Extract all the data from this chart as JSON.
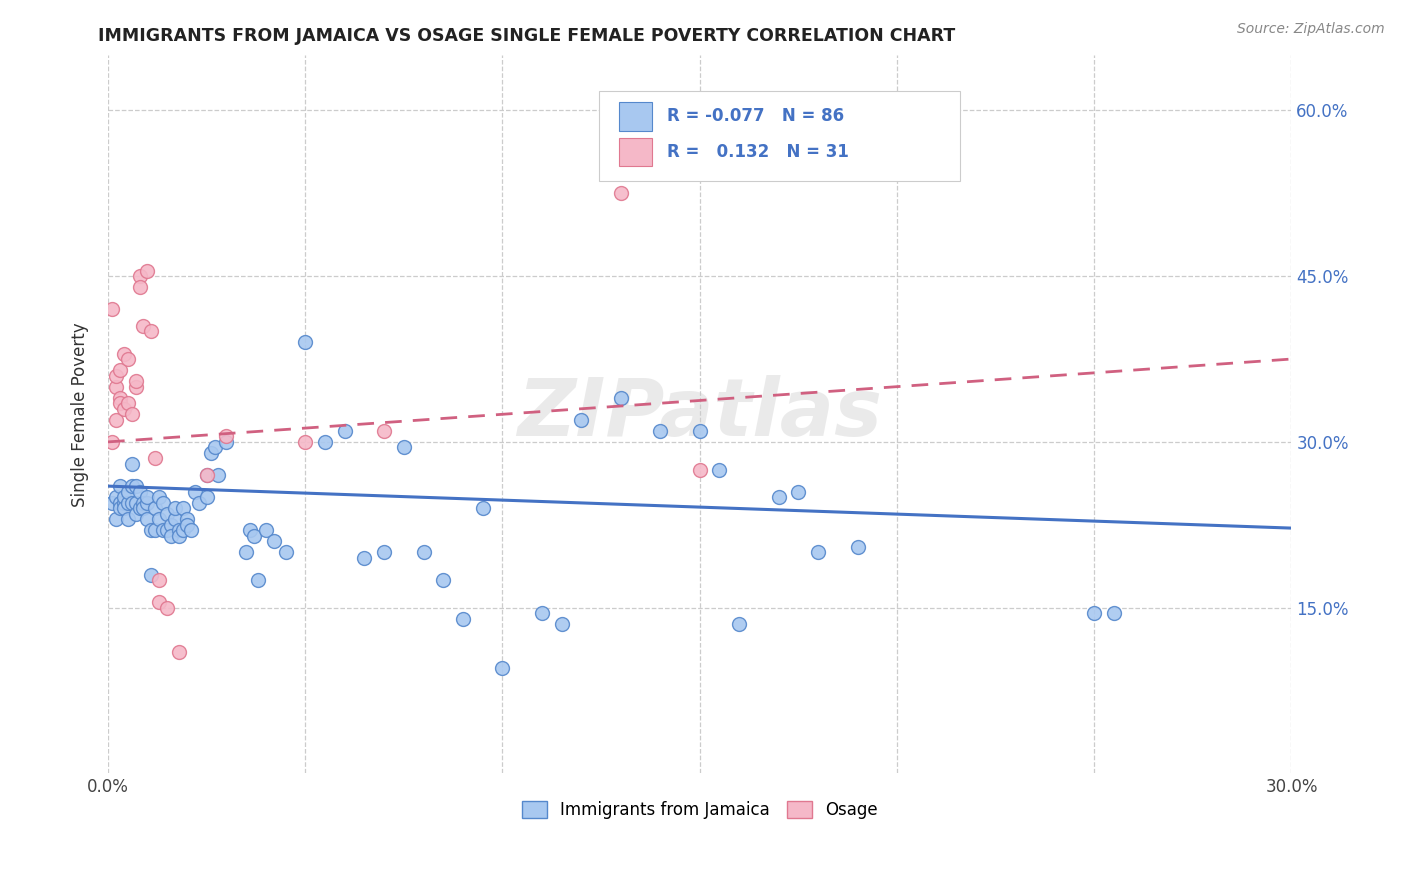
{
  "title": "IMMIGRANTS FROM JAMAICA VS OSAGE SINGLE FEMALE POVERTY CORRELATION CHART",
  "source": "Source: ZipAtlas.com",
  "ylabel": "Single Female Poverty",
  "xlim": [
    0.0,
    0.3
  ],
  "ylim": [
    0.0,
    0.65
  ],
  "xtick_vals": [
    0.0,
    0.05,
    0.1,
    0.15,
    0.2,
    0.25,
    0.3
  ],
  "xticklabels": [
    "0.0%",
    "",
    "",
    "",
    "",
    "",
    "30.0%"
  ],
  "ytick_vals": [
    0.15,
    0.3,
    0.45,
    0.6
  ],
  "ytick_labels": [
    "15.0%",
    "30.0%",
    "45.0%",
    "60.0%"
  ],
  "legend_labels": [
    "Immigrants from Jamaica",
    "Osage"
  ],
  "r_blue": -0.077,
  "n_blue": 86,
  "r_pink": 0.132,
  "n_pink": 31,
  "watermark": "ZIPatlas",
  "blue_fill": "#A8C8F0",
  "pink_fill": "#F5B8C8",
  "blue_edge": "#5588CC",
  "pink_edge": "#E07890",
  "blue_line": "#4472C4",
  "pink_line": "#D06080",
  "scatter_blue": [
    [
      0.001,
      0.245
    ],
    [
      0.002,
      0.25
    ],
    [
      0.002,
      0.23
    ],
    [
      0.003,
      0.245
    ],
    [
      0.003,
      0.24
    ],
    [
      0.003,
      0.26
    ],
    [
      0.004,
      0.245
    ],
    [
      0.004,
      0.25
    ],
    [
      0.004,
      0.24
    ],
    [
      0.005,
      0.245
    ],
    [
      0.005,
      0.255
    ],
    [
      0.005,
      0.23
    ],
    [
      0.006,
      0.245
    ],
    [
      0.006,
      0.26
    ],
    [
      0.006,
      0.28
    ],
    [
      0.007,
      0.245
    ],
    [
      0.007,
      0.26
    ],
    [
      0.007,
      0.235
    ],
    [
      0.008,
      0.24
    ],
    [
      0.008,
      0.255
    ],
    [
      0.009,
      0.245
    ],
    [
      0.009,
      0.24
    ],
    [
      0.01,
      0.245
    ],
    [
      0.01,
      0.25
    ],
    [
      0.01,
      0.23
    ],
    [
      0.011,
      0.22
    ],
    [
      0.011,
      0.18
    ],
    [
      0.012,
      0.22
    ],
    [
      0.012,
      0.24
    ],
    [
      0.013,
      0.25
    ],
    [
      0.013,
      0.23
    ],
    [
      0.014,
      0.245
    ],
    [
      0.014,
      0.22
    ],
    [
      0.015,
      0.235
    ],
    [
      0.015,
      0.22
    ],
    [
      0.016,
      0.225
    ],
    [
      0.016,
      0.215
    ],
    [
      0.017,
      0.23
    ],
    [
      0.017,
      0.24
    ],
    [
      0.018,
      0.22
    ],
    [
      0.018,
      0.215
    ],
    [
      0.019,
      0.24
    ],
    [
      0.019,
      0.22
    ],
    [
      0.02,
      0.23
    ],
    [
      0.02,
      0.225
    ],
    [
      0.021,
      0.22
    ],
    [
      0.022,
      0.255
    ],
    [
      0.023,
      0.245
    ],
    [
      0.025,
      0.27
    ],
    [
      0.025,
      0.25
    ],
    [
      0.026,
      0.29
    ],
    [
      0.027,
      0.295
    ],
    [
      0.028,
      0.27
    ],
    [
      0.03,
      0.3
    ],
    [
      0.035,
      0.2
    ],
    [
      0.036,
      0.22
    ],
    [
      0.037,
      0.215
    ],
    [
      0.038,
      0.175
    ],
    [
      0.04,
      0.22
    ],
    [
      0.042,
      0.21
    ],
    [
      0.045,
      0.2
    ],
    [
      0.05,
      0.39
    ],
    [
      0.055,
      0.3
    ],
    [
      0.06,
      0.31
    ],
    [
      0.065,
      0.195
    ],
    [
      0.07,
      0.2
    ],
    [
      0.075,
      0.295
    ],
    [
      0.08,
      0.2
    ],
    [
      0.085,
      0.175
    ],
    [
      0.09,
      0.14
    ],
    [
      0.095,
      0.24
    ],
    [
      0.1,
      0.095
    ],
    [
      0.11,
      0.145
    ],
    [
      0.115,
      0.135
    ],
    [
      0.12,
      0.32
    ],
    [
      0.13,
      0.34
    ],
    [
      0.14,
      0.31
    ],
    [
      0.15,
      0.31
    ],
    [
      0.155,
      0.275
    ],
    [
      0.16,
      0.135
    ],
    [
      0.17,
      0.25
    ],
    [
      0.175,
      0.255
    ],
    [
      0.18,
      0.2
    ],
    [
      0.19,
      0.205
    ],
    [
      0.25,
      0.145
    ],
    [
      0.255,
      0.145
    ]
  ],
  "scatter_pink": [
    [
      0.001,
      0.3
    ],
    [
      0.001,
      0.42
    ],
    [
      0.002,
      0.35
    ],
    [
      0.002,
      0.36
    ],
    [
      0.002,
      0.32
    ],
    [
      0.003,
      0.365
    ],
    [
      0.003,
      0.34
    ],
    [
      0.003,
      0.335
    ],
    [
      0.004,
      0.38
    ],
    [
      0.004,
      0.33
    ],
    [
      0.005,
      0.335
    ],
    [
      0.005,
      0.375
    ],
    [
      0.006,
      0.325
    ],
    [
      0.007,
      0.35
    ],
    [
      0.007,
      0.355
    ],
    [
      0.008,
      0.45
    ],
    [
      0.008,
      0.44
    ],
    [
      0.009,
      0.405
    ],
    [
      0.01,
      0.455
    ],
    [
      0.011,
      0.4
    ],
    [
      0.012,
      0.285
    ],
    [
      0.013,
      0.175
    ],
    [
      0.013,
      0.155
    ],
    [
      0.015,
      0.15
    ],
    [
      0.018,
      0.11
    ],
    [
      0.025,
      0.27
    ],
    [
      0.03,
      0.305
    ],
    [
      0.05,
      0.3
    ],
    [
      0.07,
      0.31
    ],
    [
      0.13,
      0.525
    ],
    [
      0.15,
      0.275
    ]
  ],
  "blue_trendline": [
    [
      0.0,
      0.26
    ],
    [
      0.3,
      0.222
    ]
  ],
  "pink_trendline": [
    [
      0.0,
      0.3
    ],
    [
      0.3,
      0.375
    ]
  ]
}
